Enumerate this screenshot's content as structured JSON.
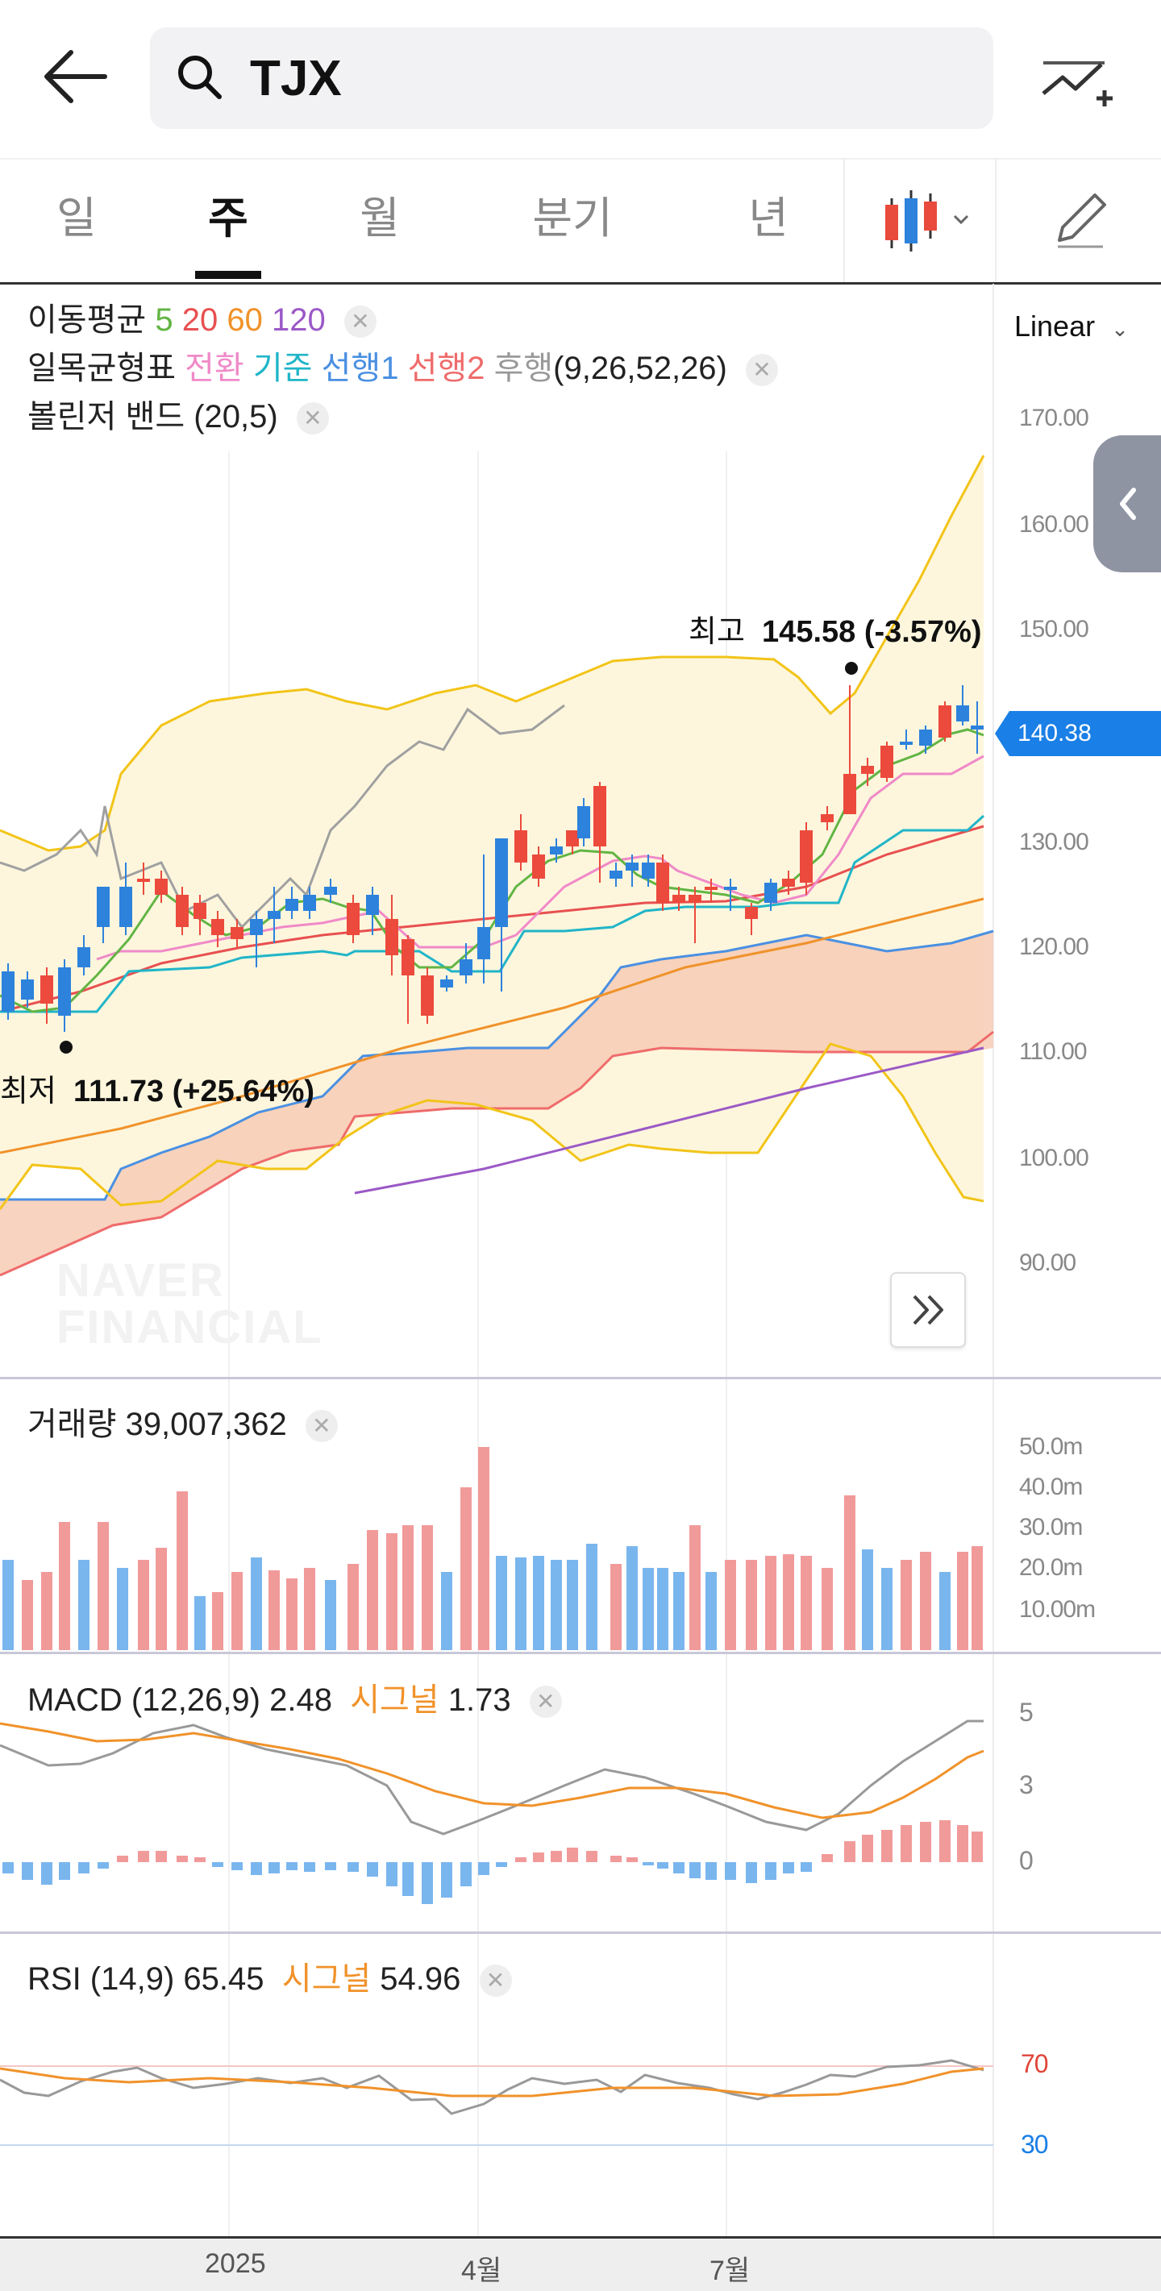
{
  "header": {
    "symbol": "TJX"
  },
  "tabs": [
    {
      "label": "일"
    },
    {
      "label": "주"
    },
    {
      "label": "월"
    },
    {
      "label": "분기"
    },
    {
      "label": "년"
    }
  ],
  "active_tab": "주",
  "indicators": {
    "ma": {
      "label": "이동평균",
      "periods": [
        "5",
        "20",
        "60",
        "120"
      ]
    },
    "ichimoku": {
      "label": "일목균형표",
      "lines": [
        "전환",
        "기준",
        "선행1",
        "선행2",
        "후행"
      ],
      "params": "(9,26,52,26)"
    },
    "bollinger": {
      "label": "볼린저 밴드 (20,5)"
    }
  },
  "scale": {
    "label": "Linear"
  },
  "price_axis": [
    "170.00",
    "160.00",
    "150.00",
    "140.38",
    "130.00",
    "120.00",
    "110.00",
    "100.00",
    "90.00"
  ],
  "current_price": "140.38",
  "high_annotation": {
    "label": "최고",
    "value": "145.58 (-3.57%)"
  },
  "low_annotation": {
    "label": "최저",
    "value": "111.73 (+25.64%)"
  },
  "watermark": [
    "NAVER",
    "FINANCIAL"
  ],
  "volume": {
    "label": "거래량",
    "value": "39,007,362",
    "axis": [
      "50.0m",
      "40.0m",
      "30.0m",
      "20.0m",
      "10.00m"
    ]
  },
  "macd": {
    "label": "MACD (12,26,9)",
    "value": "2.48",
    "signal_label": "시그널",
    "signal_value": "1.73",
    "axis": [
      "5",
      "3",
      "0"
    ]
  },
  "rsi": {
    "label": "RSI (14,9)",
    "value": "65.45",
    "signal_label": "시그널",
    "signal_value": "54.96",
    "axis": [
      "70",
      "30"
    ]
  },
  "time_axis": [
    "2025",
    "4월",
    "7월"
  ],
  "colors": {
    "up": "#ec4a3c",
    "down": "#2d82dc",
    "accent_blue": "#1a7fe6",
    "ma5": "#62b544",
    "ma20": "#e85050",
    "ma60": "#f0922a",
    "ma120": "#9b59c6"
  }
}
